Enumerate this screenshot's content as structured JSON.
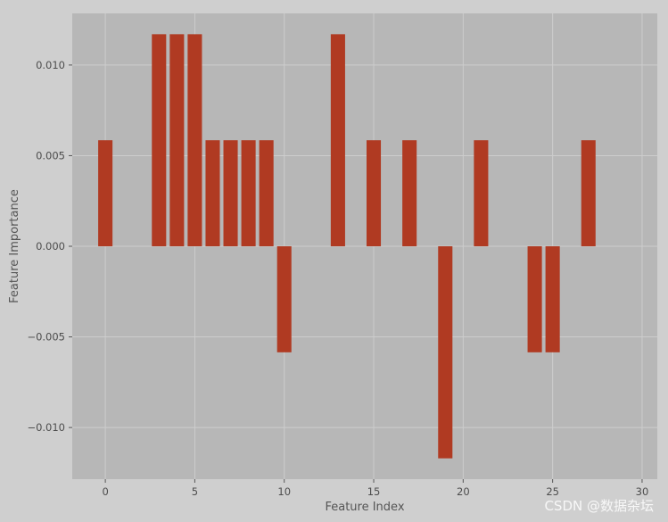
{
  "chart_data": {
    "type": "bar",
    "title": "",
    "xlabel": "Feature Index",
    "ylabel": "Feature Importance",
    "xlim": [
      -1.85,
      30.85
    ],
    "ylim": [
      -0.01285,
      0.01285
    ],
    "xticks": [
      0,
      5,
      10,
      15,
      20,
      25,
      30
    ],
    "yticks": [
      -0.01,
      -0.005,
      0.0,
      0.005,
      0.01
    ],
    "ytick_labels": [
      "−0.010",
      "−0.005",
      "0.000",
      "0.005",
      "0.010"
    ],
    "grid": true,
    "bar_color": "#b03a22",
    "background_color": "#b7b7b7",
    "x": [
      0,
      1,
      2,
      3,
      4,
      5,
      6,
      7,
      8,
      9,
      10,
      11,
      12,
      13,
      14,
      15,
      16,
      17,
      18,
      19,
      20,
      21,
      22,
      23,
      24,
      25,
      26,
      27,
      28,
      29
    ],
    "values": [
      0.00585,
      0,
      0,
      0.0117,
      0.0117,
      0.0117,
      0.00585,
      0.00585,
      0.00585,
      0.00585,
      -0.00585,
      0,
      0,
      0.0117,
      0,
      0.00585,
      0,
      0.00585,
      0,
      -0.0117,
      0,
      0.00585,
      0,
      0,
      -0.00585,
      -0.00585,
      0,
      0.00585,
      0,
      0
    ]
  },
  "watermark": "CSDN @数据杂坛"
}
